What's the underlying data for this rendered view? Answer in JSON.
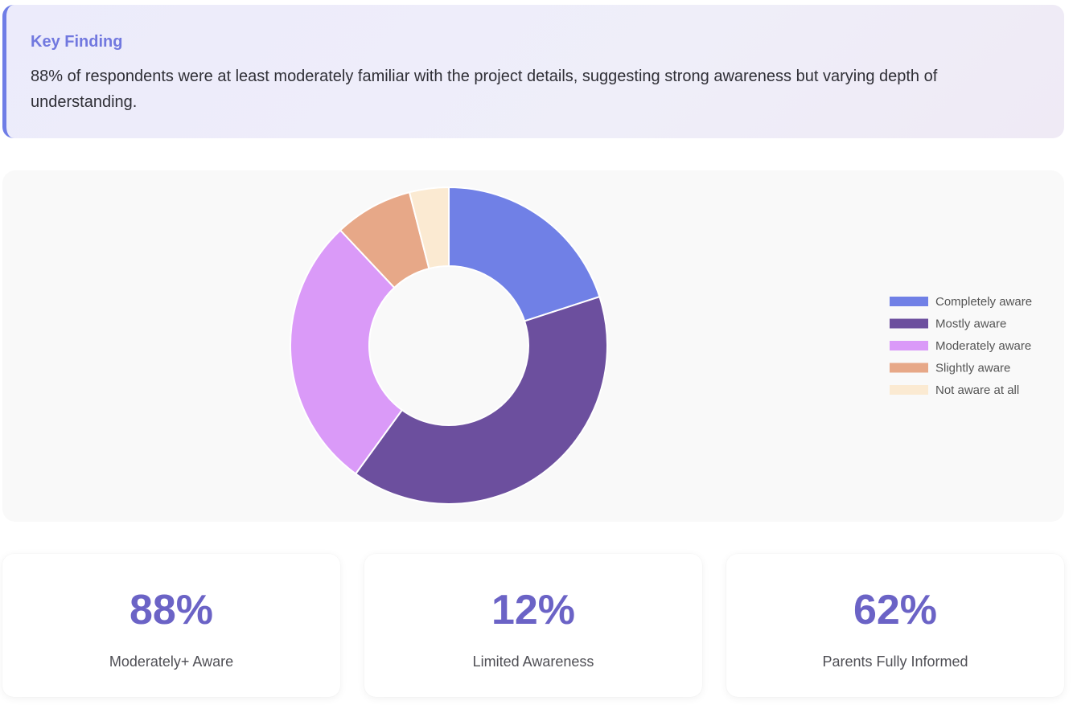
{
  "finding": {
    "title": "Key Finding",
    "text": "88% of respondents were at least moderately familiar with the project details, suggesting strong awareness but varying depth of understanding."
  },
  "chart_data": {
    "type": "pie",
    "variant": "donut",
    "title": "",
    "legend_position": "right",
    "categories": [
      "Completely aware",
      "Mostly aware",
      "Moderately aware",
      "Slightly aware",
      "Not aware at all"
    ],
    "values": [
      20,
      40,
      28,
      8,
      4
    ],
    "colors": [
      "#7080e6",
      "#6c4f9e",
      "#da9af8",
      "#e7a888",
      "#fbead2"
    ]
  },
  "stats": [
    {
      "value": "88%",
      "label": "Moderately+ Aware"
    },
    {
      "value": "12%",
      "label": "Limited Awareness"
    },
    {
      "value": "62%",
      "label": "Parents Fully Informed"
    }
  ],
  "colors": {
    "accent": "#7178df",
    "stat_value": "#6b63c6"
  }
}
